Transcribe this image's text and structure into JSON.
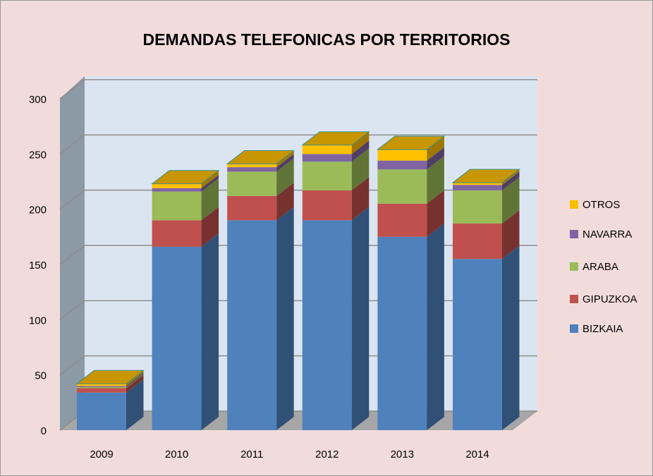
{
  "chart_data": {
    "type": "bar3d_stacked",
    "title": "DEMANDAS TELEFONICAS POR TERRITORIOS",
    "categories": [
      "2009",
      "2010",
      "2011",
      "2012",
      "2013",
      "2014"
    ],
    "series": [
      {
        "name": "BIZKAIA",
        "color": "#4f81bd",
        "values": [
          34,
          166,
          190,
          190,
          175,
          155
        ]
      },
      {
        "name": "GIPUZKOA",
        "color": "#c0504d",
        "values": [
          4,
          24,
          22,
          27,
          30,
          32
        ]
      },
      {
        "name": "ARABA",
        "color": "#9bbb59",
        "values": [
          1,
          26,
          22,
          26,
          31,
          30
        ]
      },
      {
        "name": "NAVARRA",
        "color": "#8064a2",
        "values": [
          1,
          3,
          4,
          7,
          8,
          5
        ]
      },
      {
        "name": "OTROS",
        "color": "#ffc000",
        "values": [
          2,
          4,
          3,
          8,
          10,
          2
        ]
      }
    ],
    "ylim": [
      0,
      300
    ],
    "yticks": [
      0,
      50,
      100,
      150,
      200,
      250,
      300
    ],
    "grid": true,
    "legend": "right"
  }
}
